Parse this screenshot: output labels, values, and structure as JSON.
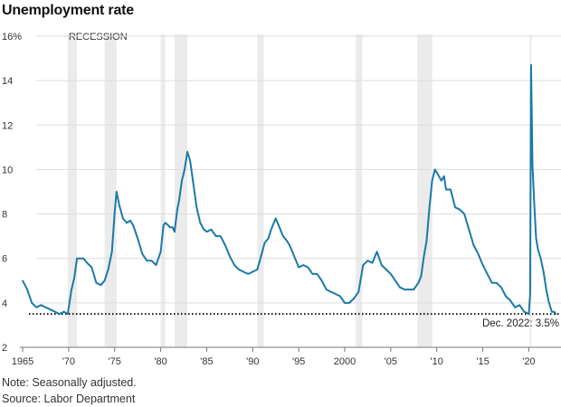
{
  "title": "Unemployment rate",
  "note": "Note: Seasonally adjusted.",
  "source": "Source: Labor Department",
  "colors": {
    "line": "#1a7aa6",
    "recession": "#ebebeb",
    "grid": "#dddddd",
    "reference": "#111111"
  },
  "chart_data": {
    "type": "line",
    "title": "Unemployment rate",
    "xlabel": "",
    "ylabel": "",
    "xlim": [
      1964.7,
      2023.5
    ],
    "ylim": [
      2,
      16
    ],
    "y_ticks": [
      2,
      4,
      6,
      8,
      10,
      12,
      14,
      16
    ],
    "y_tick_labels": [
      "2",
      "4",
      "6",
      "8",
      "10",
      "12",
      "14",
      "16%"
    ],
    "x_ticks": [
      1965,
      1970,
      1975,
      1980,
      1985,
      1990,
      1995,
      2000,
      2005,
      2010,
      2015,
      2020
    ],
    "x_tick_labels": [
      "1965",
      "'70",
      "'75",
      "'80",
      "'85",
      "'90",
      "'95",
      "2000",
      "'05",
      "'10",
      "'15",
      "'20"
    ],
    "recession_label": "RECESSION",
    "recessions": [
      [
        1969.9,
        1970.9
      ],
      [
        1973.9,
        1975.2
      ],
      [
        1980.0,
        1980.5
      ],
      [
        1981.5,
        1982.9
      ],
      [
        1990.5,
        1991.2
      ],
      [
        2001.2,
        2001.9
      ],
      [
        2007.9,
        2009.5
      ],
      [
        2020.1,
        2020.3
      ]
    ],
    "reference": {
      "value": 3.5,
      "label": "Dec. 2022: 3.5%"
    },
    "series": [
      {
        "name": "Unemployment rate",
        "x": [
          1965.0,
          1965.5,
          1966.0,
          1966.5,
          1967.0,
          1967.5,
          1968.0,
          1968.5,
          1969.0,
          1969.5,
          1969.9,
          1970.3,
          1970.6,
          1970.9,
          1971.2,
          1971.6,
          1972.0,
          1972.5,
          1973.0,
          1973.5,
          1973.9,
          1974.3,
          1974.7,
          1975.0,
          1975.2,
          1975.5,
          1975.9,
          1976.3,
          1976.7,
          1977.0,
          1977.5,
          1978.0,
          1978.5,
          1979.0,
          1979.5,
          1980.0,
          1980.3,
          1980.5,
          1980.8,
          1981.0,
          1981.3,
          1981.5,
          1981.8,
          1982.0,
          1982.3,
          1982.6,
          1982.9,
          1983.2,
          1983.5,
          1983.9,
          1984.3,
          1984.7,
          1985.0,
          1985.5,
          1986.0,
          1986.5,
          1987.0,
          1987.5,
          1988.0,
          1988.5,
          1989.0,
          1989.5,
          1990.0,
          1990.5,
          1990.9,
          1991.3,
          1991.7,
          1992.0,
          1992.5,
          1992.9,
          1993.3,
          1993.7,
          1994.0,
          1994.5,
          1995.0,
          1995.5,
          1996.0,
          1996.5,
          1997.0,
          1997.5,
          1998.0,
          1998.5,
          1999.0,
          1999.5,
          2000.0,
          2000.5,
          2001.0,
          2001.5,
          2002.0,
          2002.5,
          2003.0,
          2003.5,
          2004.0,
          2004.5,
          2005.0,
          2005.5,
          2006.0,
          2006.5,
          2007.0,
          2007.5,
          2008.0,
          2008.3,
          2008.6,
          2008.9,
          2009.2,
          2009.5,
          2009.8,
          2010.1,
          2010.5,
          2010.8,
          2011.0,
          2011.5,
          2012.0,
          2012.5,
          2013.0,
          2013.5,
          2014.0,
          2014.5,
          2015.0,
          2015.5,
          2016.0,
          2016.5,
          2017.0,
          2017.5,
          2018.0,
          2018.5,
          2019.0,
          2019.5,
          2020.0,
          2020.15,
          2020.25,
          2020.4,
          2020.6,
          2020.8,
          2021.0,
          2021.3,
          2021.6,
          2021.9,
          2022.2,
          2022.5,
          2022.75,
          2022.95
        ],
        "values": [
          5.0,
          4.6,
          4.0,
          3.8,
          3.9,
          3.8,
          3.7,
          3.6,
          3.5,
          3.6,
          3.5,
          4.6,
          5.1,
          6.0,
          6.0,
          6.0,
          5.8,
          5.6,
          4.9,
          4.8,
          5.0,
          5.5,
          6.3,
          8.1,
          9.0,
          8.4,
          7.8,
          7.6,
          7.7,
          7.5,
          6.9,
          6.2,
          5.9,
          5.9,
          5.7,
          6.3,
          7.5,
          7.6,
          7.5,
          7.4,
          7.4,
          7.2,
          8.2,
          8.6,
          9.5,
          10.0,
          10.8,
          10.4,
          9.5,
          8.3,
          7.6,
          7.3,
          7.2,
          7.3,
          7.0,
          7.0,
          6.6,
          6.1,
          5.7,
          5.5,
          5.4,
          5.3,
          5.4,
          5.5,
          6.1,
          6.7,
          6.9,
          7.3,
          7.8,
          7.4,
          7.0,
          6.8,
          6.6,
          6.1,
          5.6,
          5.7,
          5.6,
          5.3,
          5.3,
          5.0,
          4.6,
          4.5,
          4.4,
          4.3,
          4.0,
          4.0,
          4.2,
          4.5,
          5.7,
          5.9,
          5.8,
          6.3,
          5.7,
          5.5,
          5.3,
          5.0,
          4.7,
          4.6,
          4.6,
          4.6,
          4.9,
          5.2,
          6.1,
          6.8,
          8.3,
          9.5,
          10.0,
          9.8,
          9.5,
          9.7,
          9.1,
          9.1,
          8.3,
          8.2,
          8.0,
          7.3,
          6.6,
          6.2,
          5.7,
          5.3,
          4.9,
          4.9,
          4.7,
          4.3,
          4.1,
          3.8,
          3.9,
          3.6,
          3.5,
          4.4,
          14.7,
          10.2,
          8.4,
          6.9,
          6.4,
          6.0,
          5.4,
          4.6,
          4.0,
          3.6,
          3.6,
          3.5
        ]
      }
    ]
  }
}
